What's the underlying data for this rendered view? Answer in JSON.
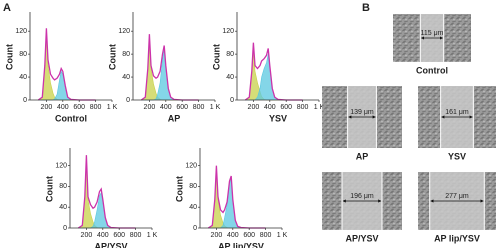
{
  "panel_labels": [
    "A",
    "B"
  ],
  "chart_data": [
    {
      "type": "line",
      "title": "Control",
      "ylabel": "Count",
      "x": [
        100,
        150,
        180,
        200,
        220,
        250,
        280,
        300,
        330,
        360,
        380,
        400,
        430,
        460,
        500,
        600,
        800
      ],
      "xlim": [
        0,
        1000
      ],
      "xticks": [
        200,
        400,
        600,
        800,
        {
          "value": 1000,
          "label": "1 K"
        }
      ],
      "ylim": [
        0,
        150
      ],
      "yticks": [
        0,
        40,
        80,
        120
      ],
      "series": [
        {
          "color": "#c8d24a",
          "area": true,
          "values": [
            0,
            5,
            55,
            115,
            60,
            30,
            12,
            5,
            1,
            0,
            0,
            0,
            0,
            0,
            0,
            0,
            0
          ]
        },
        {
          "color": "#5bc8e0",
          "area": true,
          "values": [
            0,
            0,
            0,
            0,
            0,
            0,
            0,
            2,
            10,
            35,
            50,
            45,
            22,
            5,
            1,
            0,
            0
          ]
        },
        {
          "color": "#cc33aa",
          "area": false,
          "values": [
            0,
            5,
            60,
            125,
            70,
            45,
            38,
            35,
            38,
            45,
            55,
            50,
            25,
            5,
            1,
            0,
            0
          ]
        }
      ]
    },
    {
      "type": "line",
      "title": "AP",
      "ylabel": "Count",
      "x": [
        100,
        150,
        180,
        200,
        220,
        250,
        280,
        300,
        330,
        360,
        380,
        400,
        430,
        460,
        500,
        600,
        800
      ],
      "xlim": [
        0,
        1000
      ],
      "xticks": [
        200,
        400,
        600,
        800,
        {
          "value": 1000,
          "label": "1 K"
        }
      ],
      "ylim": [
        0,
        150
      ],
      "yticks": [
        0,
        40,
        80,
        120
      ],
      "series": [
        {
          "color": "#c8d24a",
          "area": true,
          "values": [
            0,
            5,
            50,
            105,
            55,
            28,
            12,
            5,
            1,
            0,
            0,
            0,
            0,
            0,
            0,
            0,
            0
          ]
        },
        {
          "color": "#5bc8e0",
          "area": true,
          "values": [
            0,
            0,
            0,
            0,
            0,
            0,
            2,
            10,
            30,
            70,
            88,
            55,
            18,
            5,
            1,
            0,
            0
          ]
        },
        {
          "color": "#cc33aa",
          "area": false,
          "values": [
            0,
            5,
            55,
            115,
            60,
            42,
            38,
            40,
            50,
            80,
            95,
            60,
            20,
            5,
            1,
            0,
            0
          ]
        }
      ]
    },
    {
      "type": "line",
      "title": "YSV",
      "ylabel": "Count",
      "x": [
        100,
        150,
        180,
        200,
        220,
        250,
        280,
        300,
        330,
        360,
        380,
        400,
        430,
        460,
        500,
        600,
        800
      ],
      "xlim": [
        0,
        1000
      ],
      "xticks": [
        200,
        400,
        600,
        800,
        {
          "value": 1000,
          "label": "1 K"
        }
      ],
      "ylim": [
        0,
        150
      ],
      "yticks": [
        0,
        40,
        80,
        120
      ],
      "series": [
        {
          "color": "#c8d24a",
          "area": true,
          "values": [
            0,
            5,
            45,
            90,
            50,
            30,
            15,
            6,
            1,
            0,
            0,
            0,
            0,
            0,
            0,
            0,
            0
          ]
        },
        {
          "color": "#5bc8e0",
          "area": true,
          "values": [
            0,
            0,
            0,
            0,
            0,
            5,
            20,
            40,
            55,
            65,
            80,
            55,
            18,
            5,
            1,
            0,
            0
          ]
        },
        {
          "color": "#cc33aa",
          "area": false,
          "values": [
            0,
            5,
            50,
            100,
            60,
            55,
            60,
            68,
            72,
            78,
            90,
            60,
            20,
            5,
            1,
            0,
            0
          ]
        }
      ]
    },
    {
      "type": "line",
      "title": "AP/YSV",
      "ylabel": "Count",
      "x": [
        100,
        150,
        180,
        200,
        220,
        250,
        280,
        300,
        330,
        360,
        380,
        400,
        430,
        460,
        500,
        600,
        800
      ],
      "xlim": [
        0,
        1000
      ],
      "xticks": [
        200,
        400,
        600,
        800,
        {
          "value": 1000,
          "label": "1 K"
        }
      ],
      "ylim": [
        0,
        150
      ],
      "yticks": [
        0,
        40,
        80,
        120
      ],
      "series": [
        {
          "color": "#c8d24a",
          "area": true,
          "values": [
            0,
            5,
            55,
            130,
            55,
            28,
            12,
            5,
            1,
            0,
            0,
            0,
            0,
            0,
            0,
            0,
            0
          ]
        },
        {
          "color": "#5bc8e0",
          "area": true,
          "values": [
            0,
            0,
            0,
            0,
            0,
            0,
            3,
            12,
            35,
            62,
            68,
            50,
            18,
            5,
            1,
            0,
            0
          ]
        },
        {
          "color": "#cc33aa",
          "area": false,
          "values": [
            0,
            5,
            60,
            140,
            60,
            45,
            38,
            40,
            50,
            70,
            75,
            55,
            20,
            5,
            1,
            0,
            0
          ]
        }
      ]
    },
    {
      "type": "line",
      "title": "AP lip/YSV",
      "ylabel": "Count",
      "x": [
        100,
        150,
        180,
        200,
        220,
        250,
        280,
        300,
        330,
        360,
        380,
        400,
        430,
        460,
        500,
        600,
        800
      ],
      "xlim": [
        0,
        1000
      ],
      "xticks": [
        200,
        400,
        600,
        800,
        {
          "value": 1000,
          "label": "1 K"
        }
      ],
      "ylim": [
        0,
        150
      ],
      "yticks": [
        0,
        40,
        80,
        120
      ],
      "series": [
        {
          "color": "#c8d24a",
          "area": true,
          "values": [
            0,
            5,
            50,
            110,
            55,
            25,
            10,
            4,
            1,
            0,
            0,
            0,
            0,
            0,
            0,
            0,
            0
          ]
        },
        {
          "color": "#5bc8e0",
          "area": true,
          "values": [
            0,
            0,
            0,
            0,
            0,
            0,
            5,
            20,
            45,
            85,
            95,
            50,
            13,
            3,
            1,
            0,
            0
          ]
        },
        {
          "color": "#cc33aa",
          "area": false,
          "values": [
            0,
            5,
            55,
            120,
            60,
            35,
            30,
            35,
            50,
            90,
            100,
            55,
            15,
            3,
            1,
            0,
            0
          ]
        }
      ]
    }
  ],
  "wound_images": [
    {
      "label": "Control",
      "width": "115 μm"
    },
    {
      "label": "AP",
      "width": "139 μm"
    },
    {
      "label": "YSV",
      "width": "161 μm"
    },
    {
      "label": "AP/YSV",
      "width": "196 μm"
    },
    {
      "label": "AP lip/YSV",
      "width": "277 μm"
    }
  ]
}
